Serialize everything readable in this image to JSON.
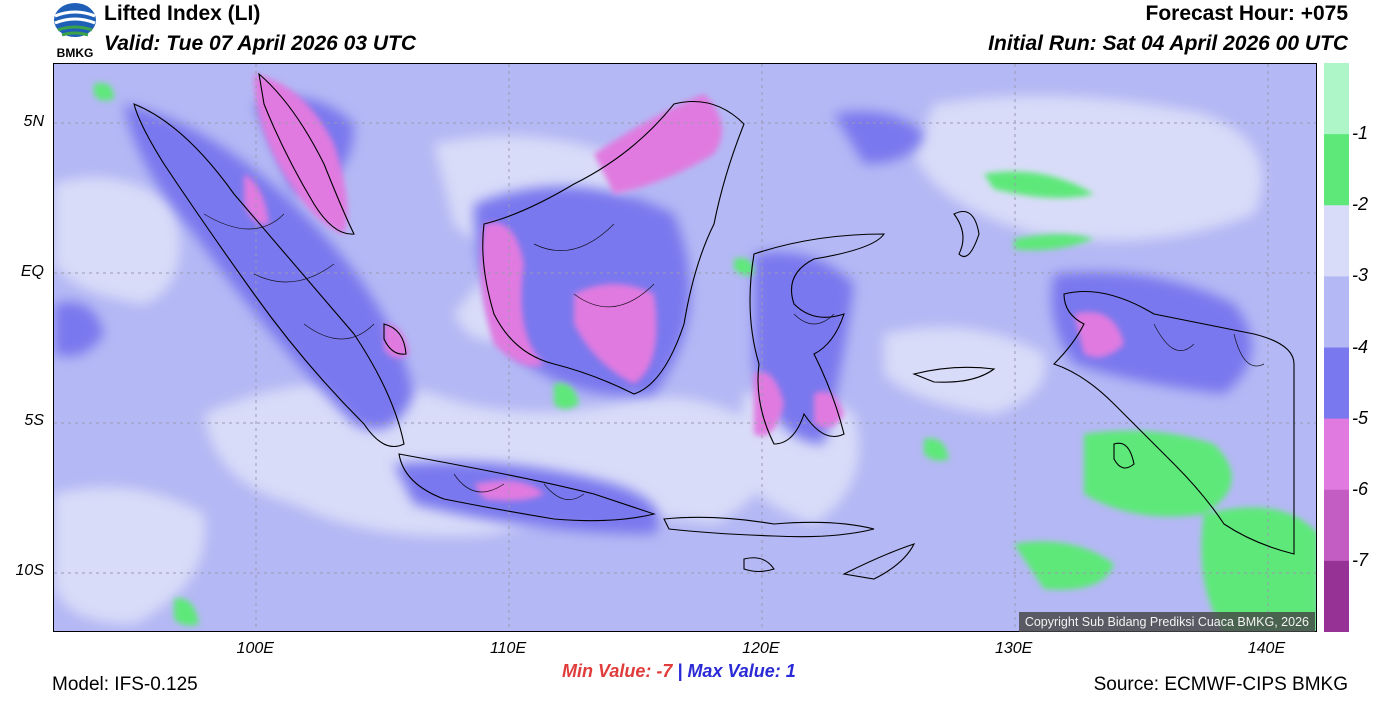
{
  "header": {
    "logo_text": "BMKG",
    "title": "Lifted Index (LI)",
    "valid": "Valid: Tue 07 April 2026 03 UTC",
    "forecast_hour": "Forecast Hour: +075",
    "initial_run": "Initial Run: Sat 04 April 2026 00 UTC"
  },
  "map": {
    "lat_ticks": [
      {
        "label": "5N",
        "lat": 5
      },
      {
        "label": "EQ",
        "lat": 0
      },
      {
        "label": "5S",
        "lat": -5
      },
      {
        "label": "10S",
        "lat": -10
      }
    ],
    "lon_ticks": [
      {
        "label": "100E",
        "lon": 100
      },
      {
        "label": "110E",
        "lon": 110
      },
      {
        "label": "120E",
        "lon": 120
      },
      {
        "label": "130E",
        "lon": 130
      },
      {
        "label": "140E",
        "lon": 140
      }
    ],
    "lon_range": [
      92,
      142
    ],
    "lat_range": [
      -12,
      7
    ],
    "copyright": "Copyright Sub Bidang Prediksi Cuaca BMKG, 2026"
  },
  "colorbar": {
    "labels": [
      "-1",
      "-2",
      "-3",
      "-4",
      "-5",
      "-6",
      "-7"
    ],
    "colors": [
      "#aef5c8",
      "#5ee87a",
      "#d8dcf8",
      "#b4b8f4",
      "#7a78ee",
      "#e07ae0",
      "#c35cc3",
      "#963296"
    ]
  },
  "stats": {
    "min_label": "Min Value:  -7",
    "separator": "|",
    "max_label": "Max Value:   1"
  },
  "footer": {
    "model": "Model: IFS-0.125",
    "source": "Source: ECMWF-CIPS BMKG"
  }
}
